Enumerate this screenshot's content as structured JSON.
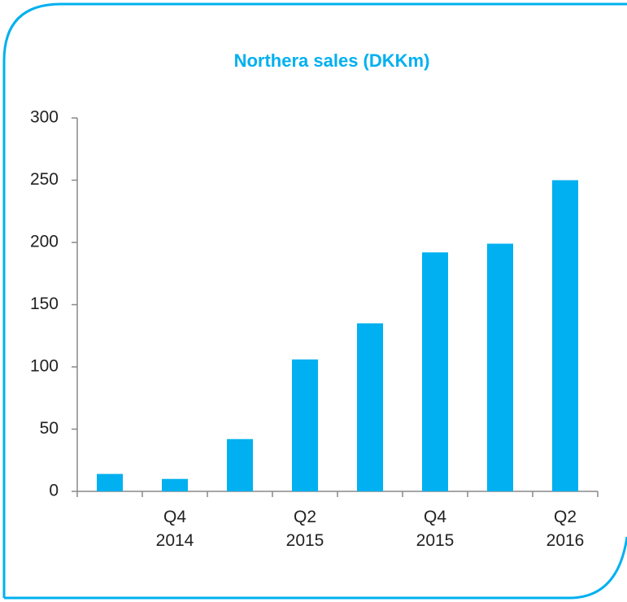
{
  "chart_data": {
    "type": "bar",
    "title": "Northera sales (DKKm)",
    "categories": [
      null,
      "Q4\n2014",
      null,
      "Q2\n2015",
      null,
      "Q4\n2015",
      null,
      "Q2\n2016"
    ],
    "values": [
      14,
      10,
      42,
      106,
      135,
      192,
      199,
      250
    ],
    "color": "#00b0f0",
    "ylim": [
      0,
      300
    ],
    "yticks": [
      0,
      50,
      100,
      150,
      200,
      250,
      300
    ],
    "grid": false
  }
}
